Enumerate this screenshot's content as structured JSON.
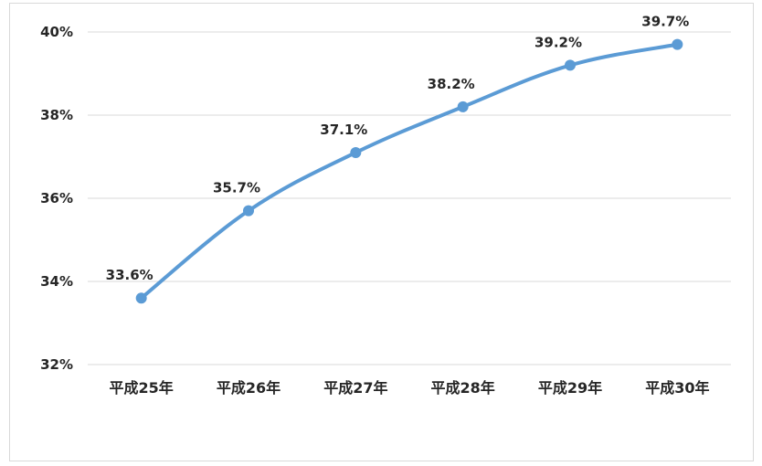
{
  "chart_data": {
    "type": "line",
    "title": "",
    "xlabel": "",
    "ylabel": "",
    "categories": [
      "平成25年",
      "平成26年",
      "平成27年",
      "平成28年",
      "平成29年",
      "平成30年"
    ],
    "series": [
      {
        "values": [
          33.6,
          35.7,
          37.1,
          38.2,
          39.2,
          39.7
        ],
        "labels": [
          "33.6%",
          "35.7%",
          "37.1%",
          "38.2%",
          "39.2%",
          "39.7%"
        ]
      }
    ],
    "ylim": [
      32,
      40
    ],
    "y_ticks": [
      32,
      34,
      36,
      38,
      40
    ],
    "y_tick_labels": [
      "32%",
      "34%",
      "36%",
      "38%",
      "40%"
    ],
    "grid": true,
    "legend": "none",
    "colors": {
      "line": "#5b9bd5",
      "grid": "#d9d9d9",
      "text": "#262626"
    }
  }
}
